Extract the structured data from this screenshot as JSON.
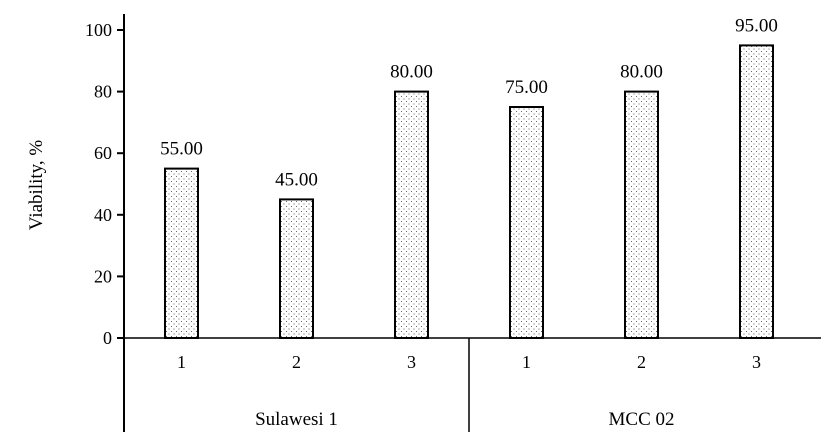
{
  "chart_data": {
    "type": "bar",
    "title": "",
    "xlabel": "",
    "ylabel": "Viability, %",
    "ylim": [
      0,
      100
    ],
    "yticks": [
      0,
      20,
      40,
      60,
      80,
      100
    ],
    "grid": false,
    "groups": [
      {
        "label": "Sulawesi 1",
        "categories": [
          "1",
          "2",
          "3"
        ],
        "values": [
          55,
          45,
          80
        ],
        "value_labels": [
          "55.00",
          "45.00",
          "80.00"
        ]
      },
      {
        "label": "MCC 02",
        "categories": [
          "1",
          "2",
          "3"
        ],
        "values": [
          75,
          80,
          95
        ],
        "value_labels": [
          "75.00",
          "80.00",
          "95.00"
        ]
      }
    ],
    "bar_fill": "dotted"
  }
}
